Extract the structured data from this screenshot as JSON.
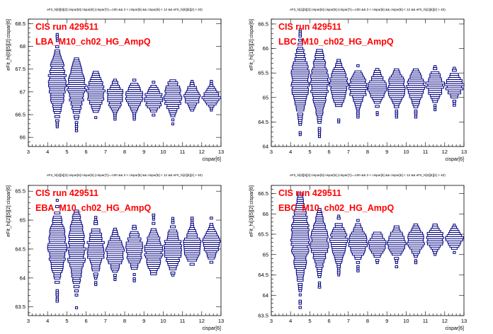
{
  "colors": {
    "box": "#000080",
    "run_label": "#ff0000",
    "axis": "#000000",
    "background": "#ffffff"
  },
  "chart_data": [
    {
      "type": "box",
      "title": "eFit_hi[0][5][2]:cispar[6]:cispar[6] (cispar[7]==100 && 3 < cispar[6] && cispar[6] < 12 && eFit_hi[0][6][2] > 40)",
      "run_label": "CIS run 429511",
      "channel_label": "LBA_M10_ch02_HG_AmpQ",
      "xlabel": "cispar[6]",
      "ylabel": "eFit_hi[0][5][2]:cispar[6]",
      "xlim": [
        3,
        13
      ],
      "ylim": [
        65.8,
        68.6
      ],
      "xticks": [
        3,
        4,
        5,
        6,
        7,
        8,
        9,
        10,
        11,
        12,
        13
      ],
      "yticks": [
        66,
        66.5,
        67,
        67.5,
        68,
        68.5
      ],
      "x": [
        4.5,
        5.5,
        6.5,
        7.5,
        8.5,
        9.5,
        10.5,
        11.5,
        12.5
      ],
      "y_min": [
        66.05,
        66.1,
        66.3,
        66.4,
        66.4,
        66.4,
        66.25,
        66.6,
        66.6
      ],
      "y_max": [
        68.3,
        67.8,
        67.45,
        67.3,
        67.3,
        67.35,
        67.4,
        67.3,
        67.25
      ],
      "y_peak": [
        67.2,
        67.1,
        67.0,
        66.9,
        66.9,
        66.85,
        66.9,
        66.9,
        66.9
      ]
    },
    {
      "type": "box",
      "title": "eFit_hi[1][5][2]:cispar[6]:cispar[6] (cispar[7]==100 && 3 < cispar[6] && cispar[6] < 12 && eFit_hi[1][6][2] > 40)",
      "run_label": "CIS run 429511",
      "channel_label": "LBC_M10_ch02_HG_AmpQ",
      "xlabel": "cispar[6]",
      "ylabel": "eFit_hi[1][5][2]:cispar[6]",
      "xlim": [
        3,
        13
      ],
      "ylim": [
        64,
        66.6
      ],
      "xticks": [
        3,
        4,
        5,
        6,
        7,
        8,
        9,
        10,
        11,
        12,
        13
      ],
      "yticks": [
        64,
        64.5,
        65,
        65.5,
        66,
        66.5
      ],
      "x": [
        4.5,
        5.5,
        6.5,
        7.5,
        8.5,
        9.5,
        10.5,
        11.5,
        12.5
      ],
      "y_min": [
        64.2,
        64.2,
        64.5,
        64.6,
        64.65,
        64.6,
        64.6,
        64.75,
        64.8
      ],
      "y_max": [
        66.4,
        66.0,
        65.8,
        65.7,
        65.6,
        65.6,
        65.6,
        65.65,
        65.65
      ],
      "y_peak": [
        65.35,
        65.3,
        65.25,
        65.2,
        65.2,
        65.2,
        65.2,
        65.25,
        65.25
      ]
    },
    {
      "type": "box",
      "title": "eFit_hi[2][5][2]:cispar[6]:cispar[6] (cispar[7]==100 && 3 < cispar[6] && cispar[6] < 12 && eFit_hi[2][6][2] > 40)",
      "run_label": "CIS run 429511",
      "channel_label": "EBA_M10_ch02_HG_AmpQ",
      "xlabel": "cispar[6]",
      "ylabel": "eFit_hi[2][5][2]:cispar[6]",
      "xlim": [
        3,
        13
      ],
      "ylim": [
        63.35,
        65.6
      ],
      "xticks": [
        3,
        4,
        5,
        6,
        7,
        8,
        9,
        10,
        11,
        12,
        13
      ],
      "yticks": [
        63.5,
        64,
        64.5,
        65,
        65.5
      ],
      "x": [
        4.5,
        5.5,
        6.5,
        7.5,
        8.5,
        9.5,
        10.5,
        11.5,
        12.5
      ],
      "y_min": [
        63.6,
        63.45,
        63.85,
        63.9,
        63.95,
        64.0,
        64.05,
        64.2,
        64.2
      ],
      "y_max": [
        65.35,
        65.2,
        65.05,
        65.0,
        64.95,
        65.1,
        65.1,
        65.05,
        65.05
      ],
      "y_peak": [
        64.55,
        64.5,
        64.5,
        64.45,
        64.5,
        64.45,
        64.5,
        64.55,
        64.6
      ]
    },
    {
      "type": "box",
      "title": "eFit_hi[3][5][2]:cispar[6]:cispar[6] (cispar[7]==100 && 3 < cispar[6] && cispar[6] < 12 && eFit_hi[3][6][2] > 40)",
      "run_label": "CIS run 429511",
      "channel_label": "EBC_M10_ch02_HG_AmpQ",
      "xlabel": "cispar[6]",
      "ylabel": "eFit_hi[3][5][2]:cispar[6]",
      "xlim": [
        3,
        13
      ],
      "ylim": [
        63.5,
        66.7
      ],
      "xticks": [
        3,
        4,
        5,
        6,
        7,
        8,
        9,
        10,
        11,
        12,
        13
      ],
      "yticks": [
        63.5,
        64,
        64.5,
        65,
        65.5,
        66,
        66.5
      ],
      "x": [
        4.5,
        5.5,
        6.5,
        7.5,
        8.5,
        9.5,
        10.5,
        11.5,
        12.5
      ],
      "y_min": [
        63.7,
        64.2,
        64.5,
        64.6,
        64.7,
        64.7,
        64.8,
        64.9,
        65.0
      ],
      "y_max": [
        66.5,
        66.2,
        66.0,
        65.85,
        65.75,
        65.8,
        65.75,
        65.75,
        65.75
      ],
      "y_peak": [
        65.4,
        65.3,
        65.3,
        65.3,
        65.25,
        65.3,
        65.35,
        65.4,
        65.4
      ]
    }
  ]
}
